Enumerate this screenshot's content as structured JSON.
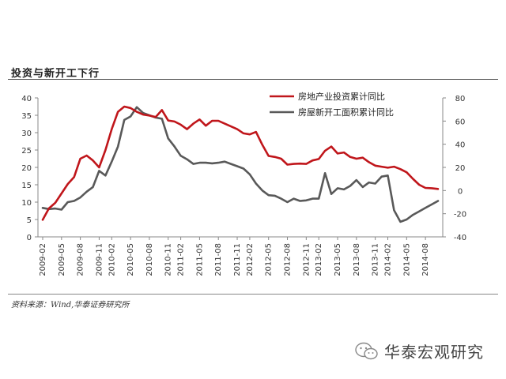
{
  "header": {
    "title": "投资与新开工下行"
  },
  "source": "资料来源：Wind,华泰证券研究所",
  "brand": {
    "name": "华泰宏观研究",
    "icon": "wechat-icon"
  },
  "colors": {
    "investment": "#C0161B",
    "new_starts": "#595959"
  },
  "chart_data": {
    "type": "line",
    "title": "",
    "x": [
      "2009-02",
      "2009-03",
      "2009-04",
      "2009-05",
      "2009-06",
      "2009-07",
      "2009-08",
      "2009-09",
      "2009-10",
      "2009-11",
      "2009-12",
      "2010-02",
      "2010-03",
      "2010-04",
      "2010-05",
      "2010-06",
      "2010-07",
      "2010-08",
      "2010-09",
      "2010-10",
      "2010-11",
      "2010-12",
      "2011-02",
      "2011-03",
      "2011-04",
      "2011-05",
      "2011-06",
      "2011-07",
      "2011-08",
      "2011-09",
      "2011-10",
      "2011-11",
      "2011-12",
      "2012-02",
      "2012-03",
      "2012-04",
      "2012-05",
      "2012-06",
      "2012-07",
      "2012-08",
      "2012-09",
      "2012-10",
      "2012-11",
      "2012-12",
      "2013-02",
      "2013-03",
      "2013-04",
      "2013-05",
      "2013-06",
      "2013-07",
      "2013-08",
      "2013-09",
      "2013-10",
      "2013-11",
      "2013-12",
      "2014-02",
      "2014-03",
      "2014-04",
      "2014-05",
      "2014-06",
      "2014-07",
      "2014-08",
      "2014-09",
      "2014-10"
    ],
    "x_tick_labels": [
      "2009-02",
      "2009-05",
      "2009-08",
      "2009-11",
      "2010-02",
      "2010-05",
      "2010-08",
      "2010-11",
      "2011-02",
      "2011-05",
      "2011-08",
      "2011-11",
      "2012-02",
      "2012-05",
      "2012-08",
      "2012-11",
      "2013-02",
      "2013-05",
      "2013-08",
      "2013-11",
      "2014-02",
      "2014-05",
      "2014-08"
    ],
    "y_left": {
      "min": 0,
      "max": 40,
      "ticks": [
        0,
        5,
        10,
        15,
        20,
        25,
        30,
        35,
        40
      ]
    },
    "y_right": {
      "min": -40,
      "max": 80,
      "ticks": [
        -40,
        -20,
        0,
        20,
        40,
        60,
        80
      ]
    },
    "legend_position": "top-right",
    "grid": false,
    "series": [
      {
        "name": "房地产业投资累计同比",
        "axis": "left",
        "color": "#C0161B",
        "values": [
          4.9,
          8.2,
          9.8,
          12.5,
          15.2,
          17.2,
          22.5,
          23.4,
          22.0,
          20.0,
          25.0,
          31.0,
          36.0,
          37.5,
          37.1,
          36.0,
          35.2,
          34.9,
          34.5,
          36.5,
          33.5,
          33.2,
          32.3,
          31.0,
          32.6,
          33.8,
          32.0,
          33.4,
          33.4,
          32.6,
          31.8,
          31.0,
          29.8,
          29.5,
          30.2,
          26.5,
          23.3,
          23.0,
          22.5,
          20.8,
          21.0,
          21.1,
          21.0,
          22.0,
          22.4,
          24.8,
          26.0,
          24.0,
          24.3,
          23.0,
          22.5,
          22.8,
          21.5,
          20.5,
          20.2,
          19.9,
          20.2,
          19.5,
          18.6,
          16.7,
          15.0,
          14.1,
          14.0,
          13.8
        ]
      },
      {
        "name": "房屋新开工面积累计同比",
        "axis": "right",
        "color": "#595959",
        "values": [
          -15.0,
          -16.0,
          -15.5,
          -16.5,
          -10.0,
          -9.0,
          -6.0,
          -1.0,
          3.0,
          17.0,
          13.0,
          25.0,
          38.0,
          61.0,
          64.0,
          72.0,
          67.0,
          65.0,
          63.0,
          62.0,
          45.0,
          38.0,
          30.0,
          27.0,
          23.0,
          24.0,
          24.0,
          23.5,
          24.0,
          25.0,
          23.0,
          21.0,
          19.0,
          14.0,
          6.0,
          0.0,
          -4.0,
          -4.5,
          -7.0,
          -10.0,
          -7.0,
          -9.0,
          -8.5,
          -7.0,
          -7.0,
          15.0,
          -3.0,
          2.0,
          1.0,
          4.0,
          9.0,
          3.0,
          7.0,
          6.0,
          12.0,
          13.0,
          -17.0,
          -27.0,
          -25.0,
          -21.0,
          -18.0,
          -15.0,
          -12.0,
          -9.0
        ]
      }
    ]
  }
}
